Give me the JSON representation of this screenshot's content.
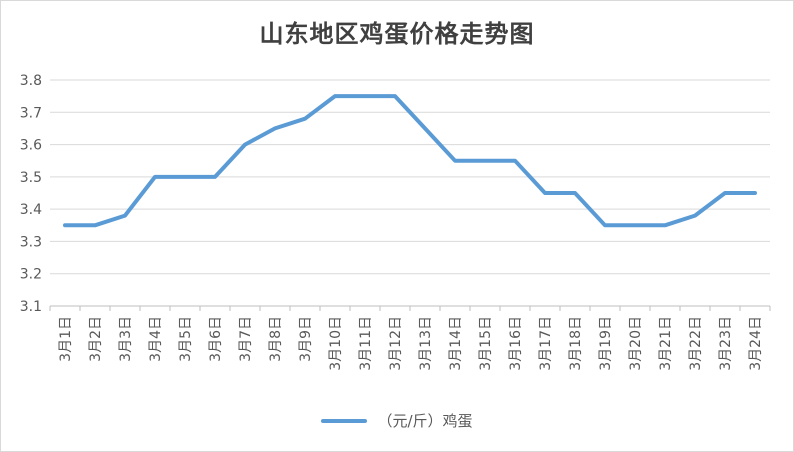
{
  "chart_data": {
    "type": "line",
    "title": "山东地区鸡蛋价格走势图",
    "xlabel": "",
    "ylabel": "",
    "categories": [
      "3月1日",
      "3月2日",
      "3月3日",
      "3月4日",
      "3月5日",
      "3月6日",
      "3月7日",
      "3月8日",
      "3月9日",
      "3月10日",
      "3月11日",
      "3月12日",
      "3月13日",
      "3月14日",
      "3月15日",
      "3月16日",
      "3月17日",
      "3月18日",
      "3月19日",
      "3月20日",
      "3月21日",
      "3月22日",
      "3月23日",
      "3月24日"
    ],
    "series": [
      {
        "name": "（元/斤）鸡蛋",
        "color": "#5b9bd5",
        "values": [
          3.35,
          3.35,
          3.38,
          3.5,
          3.5,
          3.5,
          3.6,
          3.65,
          3.68,
          3.75,
          3.75,
          3.75,
          3.65,
          3.55,
          3.55,
          3.55,
          3.45,
          3.45,
          3.35,
          3.35,
          3.35,
          3.38,
          3.45,
          3.45
        ]
      }
    ],
    "ylim": [
      3.1,
      3.8
    ],
    "yticks": [
      "3.1",
      "3.2",
      "3.3",
      "3.4",
      "3.5",
      "3.6",
      "3.7",
      "3.8"
    ],
    "grid": true,
    "legend_position": "bottom"
  }
}
